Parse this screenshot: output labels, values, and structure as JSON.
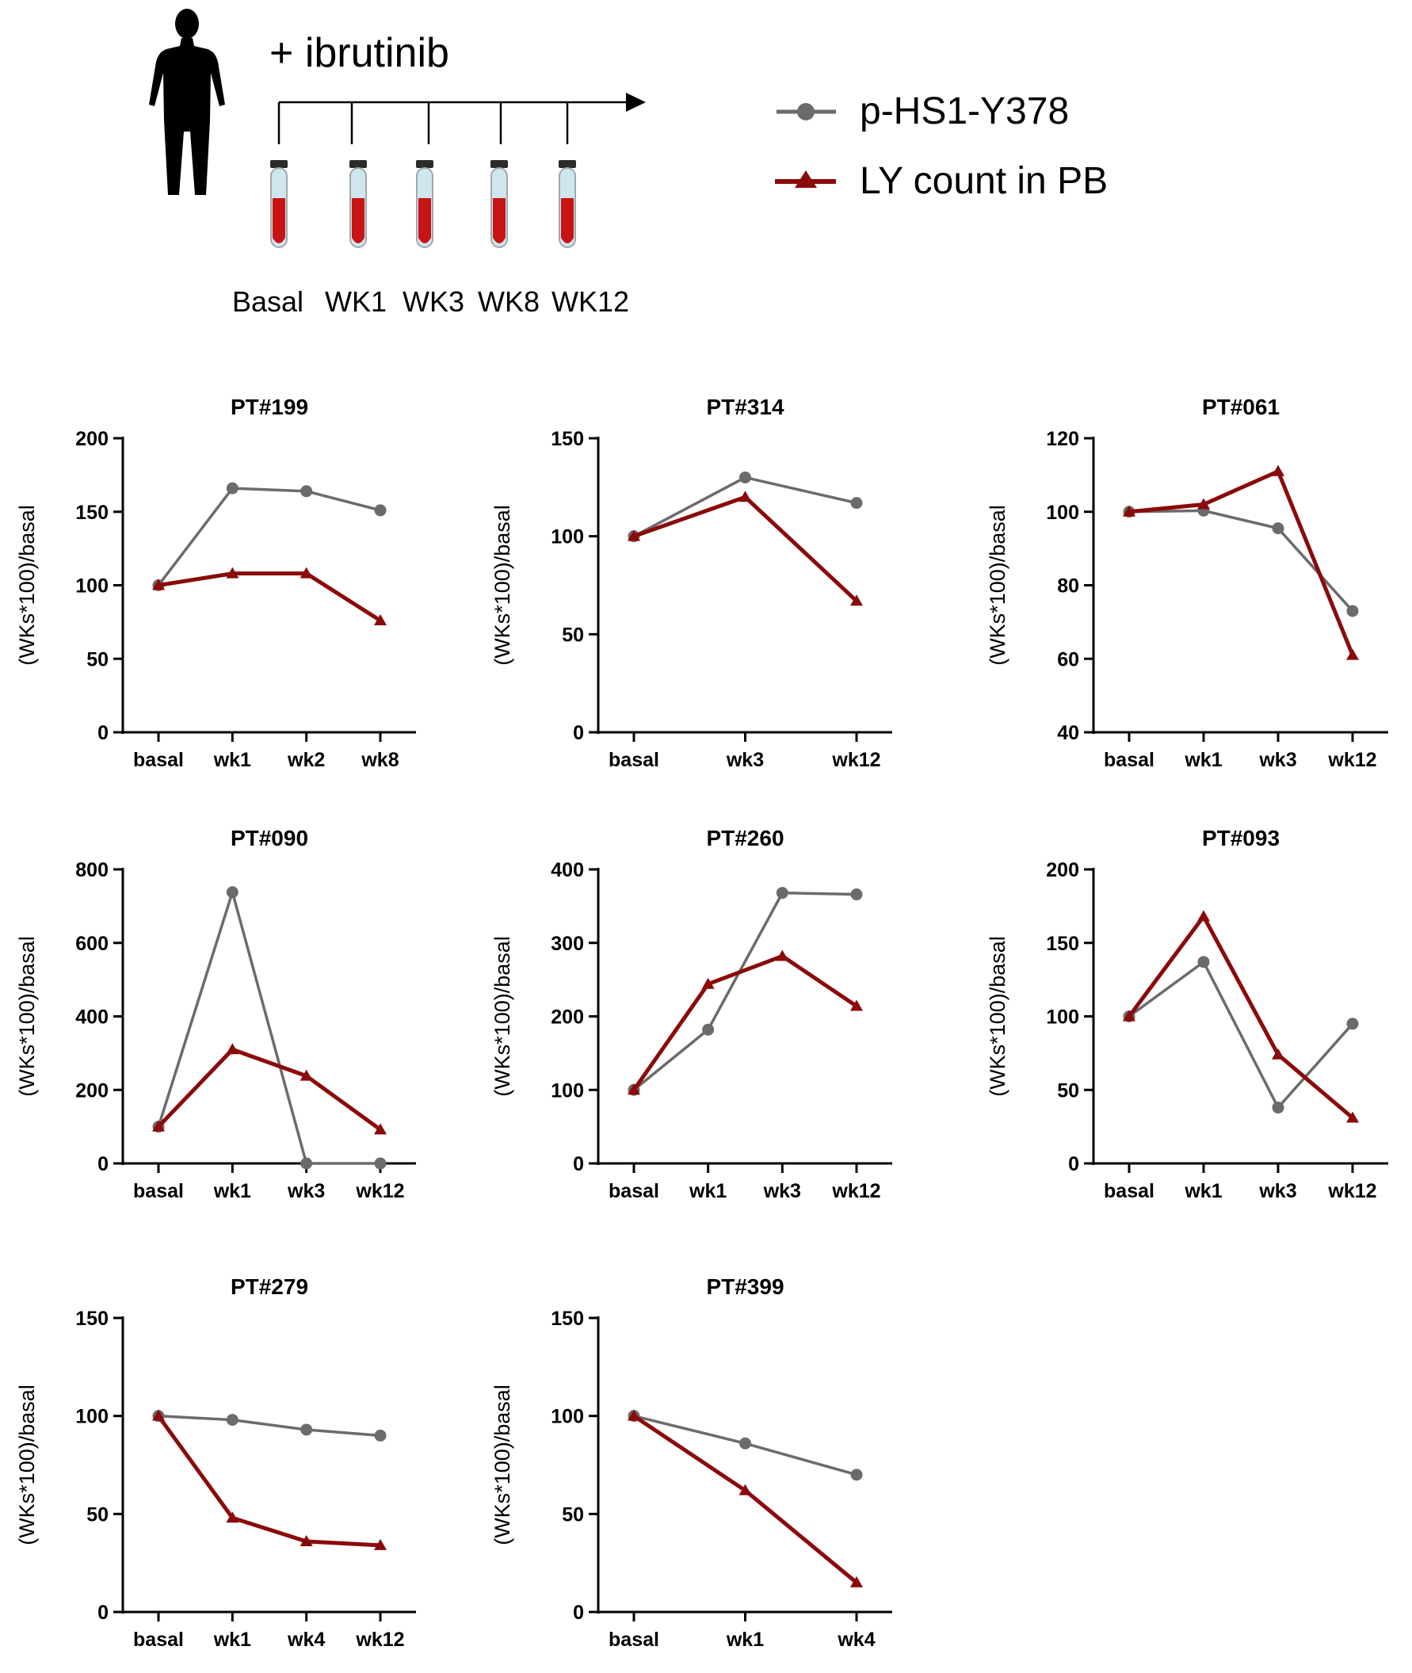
{
  "schematic": {
    "treatment_label": "+ ibrutinib",
    "timepoints": [
      "Basal",
      "WK1",
      "WK3",
      "WK8",
      "WK12"
    ]
  },
  "legend": {
    "items": [
      {
        "name": "p-HS1-Y378",
        "marker": "circle",
        "color": "#6b6b6b"
      },
      {
        "name": "LY count in PB",
        "marker": "triangle",
        "color": "#8b0a0a"
      }
    ]
  },
  "colors": {
    "phs1": "#6b6b6b",
    "ly": "#8b0a0a"
  },
  "chart_data": [
    {
      "type": "line",
      "title": "PT#199",
      "ylabel": "(WKs*100)/basal",
      "categories": [
        "basal",
        "wk1",
        "wk2",
        "wk8"
      ],
      "ylim": [
        0,
        200
      ],
      "yticks": [
        0,
        50,
        100,
        150,
        200
      ],
      "series": [
        {
          "name": "p-HS1-Y378",
          "values": [
            100,
            166,
            164,
            151
          ]
        },
        {
          "name": "LY count in PB",
          "values": [
            100,
            108,
            108,
            76
          ]
        }
      ]
    },
    {
      "type": "line",
      "title": "PT#314",
      "ylabel": "(WKs*100)/basal",
      "categories": [
        "basal",
        "wk3",
        "wk12"
      ],
      "ylim": [
        0,
        150
      ],
      "yticks": [
        0,
        50,
        100,
        150
      ],
      "series": [
        {
          "name": "p-HS1-Y378",
          "values": [
            100,
            130,
            117
          ]
        },
        {
          "name": "LY count in PB",
          "values": [
            100,
            120,
            67
          ]
        }
      ]
    },
    {
      "type": "line",
      "title": "PT#061",
      "ylabel": "(WKs*100)/basal",
      "categories": [
        "basal",
        "wk1",
        "wk3",
        "wk12"
      ],
      "ylim": [
        40,
        120
      ],
      "yticks": [
        40,
        60,
        80,
        100,
        120
      ],
      "series": [
        {
          "name": "p-HS1-Y378",
          "values": [
            100,
            100.3,
            95.5,
            73
          ]
        },
        {
          "name": "LY count in PB",
          "values": [
            100,
            102,
            111,
            61
          ]
        }
      ]
    },
    {
      "type": "line",
      "title": "PT#090",
      "ylabel": "(WKs*100)/basal",
      "categories": [
        "basal",
        "wk1",
        "wk3",
        "wk12"
      ],
      "ylim": [
        0,
        800
      ],
      "yticks": [
        0,
        200,
        400,
        600,
        800
      ],
      "series": [
        {
          "name": "p-HS1-Y378",
          "values": [
            100,
            738,
            0,
            0
          ]
        },
        {
          "name": "LY count in PB",
          "values": [
            100,
            310,
            238,
            92
          ]
        }
      ]
    },
    {
      "type": "line",
      "title": "PT#260",
      "ylabel": "(WKs*100)/basal",
      "categories": [
        "basal",
        "wk1",
        "wk3",
        "wk12"
      ],
      "ylim": [
        0,
        400
      ],
      "yticks": [
        0,
        100,
        200,
        300,
        400
      ],
      "series": [
        {
          "name": "p-HS1-Y378",
          "values": [
            100,
            182,
            368,
            366
          ]
        },
        {
          "name": "LY count in PB",
          "values": [
            100,
            244,
            282,
            214
          ]
        }
      ]
    },
    {
      "type": "line",
      "title": "PT#093",
      "ylabel": "(WKs*100)/basal",
      "categories": [
        "basal",
        "wk1",
        "wk3",
        "wk12"
      ],
      "ylim": [
        0,
        200
      ],
      "yticks": [
        0,
        50,
        100,
        150,
        200
      ],
      "series": [
        {
          "name": "p-HS1-Y378",
          "values": [
            100,
            137,
            38,
            95
          ]
        },
        {
          "name": "LY count in PB",
          "values": [
            100,
            168,
            74,
            31
          ]
        }
      ]
    },
    {
      "type": "line",
      "title": "PT#279",
      "ylabel": "(WKs*100)/basal",
      "categories": [
        "basal",
        "wk1",
        "wk4",
        "wk12"
      ],
      "ylim": [
        0,
        150
      ],
      "yticks": [
        0,
        50,
        100,
        150
      ],
      "series": [
        {
          "name": "p-HS1-Y378",
          "values": [
            100,
            98,
            93,
            90
          ]
        },
        {
          "name": "LY count in PB",
          "values": [
            100,
            48,
            36,
            34
          ]
        }
      ]
    },
    {
      "type": "line",
      "title": "PT#399",
      "ylabel": "(WKs*100)/basal",
      "categories": [
        "basal",
        "wk1",
        "wk4"
      ],
      "ylim": [
        0,
        150
      ],
      "yticks": [
        0,
        50,
        100,
        150
      ],
      "series": [
        {
          "name": "p-HS1-Y378",
          "values": [
            100,
            86,
            70
          ]
        },
        {
          "name": "LY count in PB",
          "values": [
            100,
            62,
            15
          ]
        }
      ]
    }
  ]
}
